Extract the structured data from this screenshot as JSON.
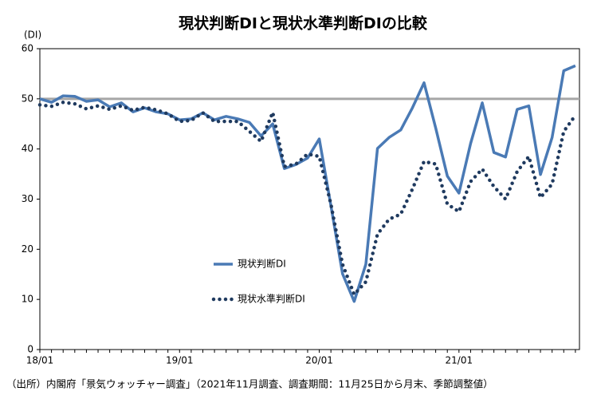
{
  "chart_data": {
    "type": "line",
    "title": "現状判断DIと現状水準判断DIの比較",
    "y_axis_label": "(DI)",
    "source": "（出所）内閣府「景気ウォッチャー調査」（2021年11月調査、調査期間：11月25日から月末、季節調整値）",
    "categories": [
      "18/01",
      null,
      null,
      null,
      null,
      null,
      null,
      null,
      null,
      null,
      null,
      null,
      "19/01",
      null,
      null,
      null,
      null,
      null,
      null,
      null,
      null,
      null,
      null,
      null,
      "20/01",
      null,
      null,
      null,
      null,
      null,
      null,
      null,
      null,
      null,
      null,
      null,
      "21/01",
      null,
      null,
      null,
      null,
      null,
      null,
      null,
      null,
      null,
      null
    ],
    "series": [
      {
        "name": "現状判断DI",
        "color": "#4a7ab5",
        "style": "solid",
        "values": [
          50.0,
          49.3,
          50.6,
          50.5,
          49.5,
          49.8,
          48.4,
          49.2,
          47.4,
          48.2,
          47.4,
          47.0,
          45.8,
          46.0,
          47.2,
          45.8,
          46.5,
          46.0,
          45.3,
          42.6,
          45.0,
          36.1,
          36.9,
          38.2,
          42.0,
          28.7,
          15.1,
          9.6,
          17.0,
          40.1,
          42.3,
          43.8,
          48.2,
          53.2,
          44.2,
          34.6,
          31.2,
          41.1,
          49.2,
          39.3,
          38.4,
          47.9,
          48.6,
          34.9,
          42.3,
          55.6,
          56.6
        ]
      },
      {
        "name": "現状水準判断DI",
        "color": "#1f3a5f",
        "style": "dotted",
        "values": [
          48.8,
          48.5,
          49.3,
          49.0,
          48.0,
          48.6,
          47.9,
          48.6,
          47.7,
          48.3,
          47.8,
          47.0,
          45.5,
          45.7,
          47.2,
          45.5,
          45.5,
          45.5,
          43.5,
          41.5,
          47.3,
          36.5,
          37.0,
          39.0,
          38.5,
          29.0,
          17.0,
          11.0,
          13.5,
          23.0,
          26.0,
          27.0,
          32.0,
          37.5,
          37.0,
          29.0,
          27.5,
          33.5,
          36.0,
          32.5,
          30.0,
          35.5,
          38.5,
          30.3,
          33.0,
          43.5,
          46.7
        ]
      }
    ],
    "ylim": [
      0,
      60
    ],
    "yticks": [
      0,
      10,
      20,
      30,
      40,
      50,
      60
    ],
    "reference_line": {
      "value": 50,
      "color": "#a6a6a6"
    }
  }
}
